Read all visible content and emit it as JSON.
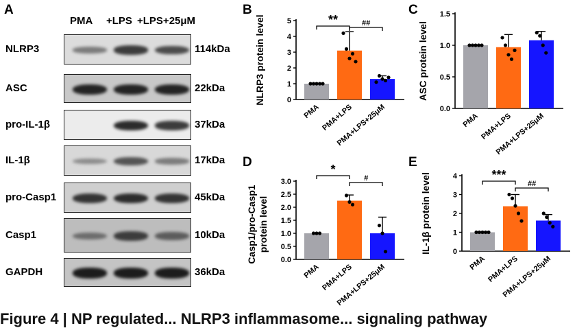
{
  "panel_letters": {
    "A": "A",
    "B": "B",
    "C": "C",
    "D": "D",
    "E": "E"
  },
  "blot": {
    "lanes": [
      "PMA",
      "+LPS",
      "+LPS+25μM"
    ],
    "rows": [
      {
        "name": "NLRP3",
        "mw": "114kDa",
        "bg": "#dcdcdc",
        "intensities": [
          0.35,
          0.75,
          0.65
        ]
      },
      {
        "name": "ASC",
        "mw": "22kDa",
        "bg": "#c8c8c8",
        "intensities": [
          0.9,
          0.9,
          0.9
        ]
      },
      {
        "name": "pro-IL-1β",
        "mw": "37kDa",
        "bg": "#ececec",
        "intensities": [
          0.0,
          0.85,
          0.75
        ]
      },
      {
        "name": "IL-1β",
        "mw": "17kDa",
        "bg": "#d8d8d8",
        "intensities": [
          0.25,
          0.6,
          0.35
        ]
      },
      {
        "name": "pro-Casp1",
        "mw": "45kDa",
        "bg": "#cfcfcf",
        "intensities": [
          0.8,
          0.85,
          0.8
        ]
      },
      {
        "name": "Casp1",
        "mw": "10kDa",
        "bg": "#bdbdbd",
        "intensities": [
          0.45,
          0.75,
          0.55
        ]
      },
      {
        "name": "GAPDH",
        "mw": "36kDa",
        "bg": "#c4c4c4",
        "intensities": [
          0.95,
          0.95,
          0.95
        ]
      }
    ]
  },
  "colors": {
    "PMA": "#a5a5ab",
    "PMA+LPS": "#ff6a13",
    "PMA+LPS+25μM": "#1515ff"
  },
  "chart_data": [
    {
      "id": "B",
      "type": "bar",
      "ylabel": "NLRP3 protein level",
      "ylim": [
        0,
        5
      ],
      "yticks": [
        0,
        1,
        2,
        3,
        4,
        5
      ],
      "categories": [
        "PMA",
        "PMA+LPS",
        "PMA+LPS+25μM"
      ],
      "values": [
        1.0,
        3.1,
        1.3
      ],
      "errors": [
        0.0,
        1.2,
        0.2
      ],
      "points": [
        [
          1,
          1,
          1,
          1,
          1
        ],
        [
          4.2,
          3.2,
          2.6,
          2.9,
          2.4
        ],
        [
          1.1,
          1.5,
          1.3,
          1.2,
          1.4
        ]
      ],
      "significance": [
        {
          "from": 0,
          "to": 1,
          "label": "**"
        },
        {
          "from": 1,
          "to": 2,
          "label": "##"
        }
      ]
    },
    {
      "id": "C",
      "type": "bar",
      "ylabel": "ASC protein level",
      "ylim": [
        0,
        1.5
      ],
      "yticks": [
        0.0,
        0.5,
        1.0,
        1.5
      ],
      "categories": [
        "PMA",
        "PMA+LPS",
        "PMA+LPS+25μM"
      ],
      "values": [
        1.0,
        0.97,
        1.08
      ],
      "errors": [
        0.0,
        0.2,
        0.14
      ],
      "points": [
        [
          1,
          1,
          1,
          1,
          1
        ],
        [
          1.12,
          1.0,
          0.85,
          0.78,
          0.92
        ],
        [
          1.2,
          1.15,
          1.0,
          0.88
        ]
      ],
      "significance": []
    },
    {
      "id": "D",
      "type": "bar",
      "ylabel": [
        "Casp1/pro-Casp1",
        "protein level"
      ],
      "ylim": [
        0,
        3
      ],
      "yticks": [
        0.0,
        0.5,
        1.0,
        1.5,
        2.0,
        2.5,
        3.0
      ],
      "categories": [
        "PMA",
        "PMA+LPS",
        "PMA+LPS+25μM"
      ],
      "values": [
        1.0,
        2.25,
        1.0
      ],
      "errors": [
        0.0,
        0.22,
        0.62
      ],
      "points": [
        [
          1,
          1,
          1
        ],
        [
          2.45,
          2.2,
          2.1
        ],
        [
          1.3,
          1.0,
          0.3
        ]
      ],
      "significance": [
        {
          "from": 0,
          "to": 1,
          "label": "*"
        },
        {
          "from": 1,
          "to": 2,
          "label": "#"
        }
      ]
    },
    {
      "id": "E",
      "type": "bar",
      "ylabel": [
        "IL-1",
        "β",
        " protein level"
      ],
      "ylim": [
        0,
        4
      ],
      "yticks": [
        0,
        1,
        2,
        3,
        4
      ],
      "categories": [
        "PMA",
        "PMA+LPS",
        "PMA+LPS+25μM"
      ],
      "values": [
        1.0,
        2.38,
        1.62
      ],
      "errors": [
        0.0,
        0.62,
        0.32
      ],
      "points": [
        [
          1,
          1,
          1,
          1,
          1
        ],
        [
          3.0,
          2.8,
          2.4,
          2.0,
          1.6
        ],
        [
          2.0,
          1.8,
          1.5,
          1.3
        ]
      ],
      "significance": [
        {
          "from": 0,
          "to": 1,
          "label": "***"
        },
        {
          "from": 1,
          "to": 2,
          "label": "##"
        }
      ]
    }
  ],
  "caption": "Figure 4 | NP regulated... NLRP3 inflammasome... signaling pathway"
}
